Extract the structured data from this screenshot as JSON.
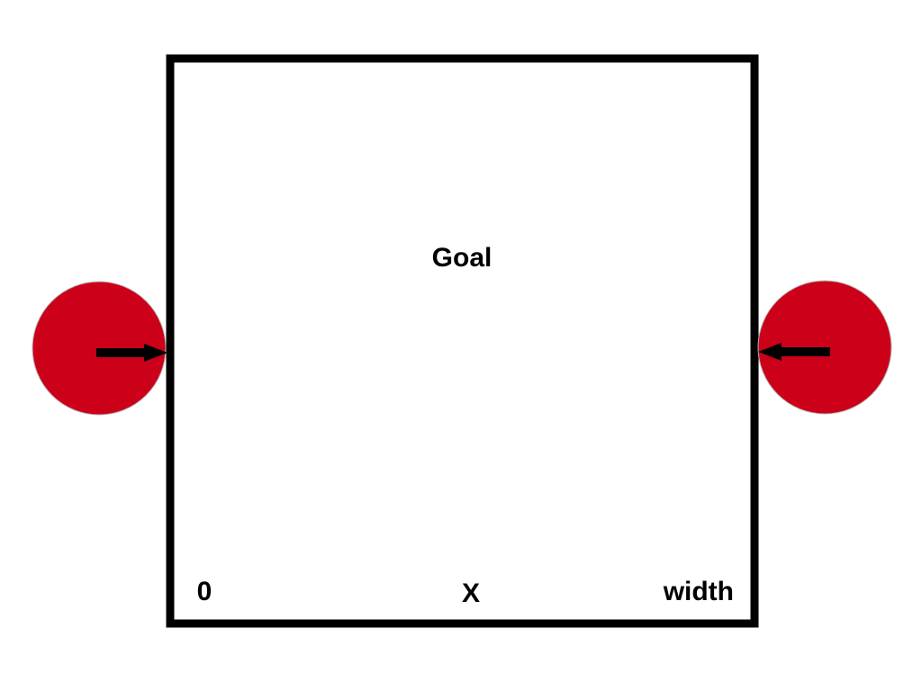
{
  "diagram": {
    "goal_label": "Goal",
    "axis_start_label": "0",
    "axis_variable_label": "X",
    "axis_end_label": "width"
  },
  "colors": {
    "frame": "#000000",
    "ball": "#cc0019",
    "ball_edge": "#b8b8b8",
    "arrow": "#000000",
    "background": "#ffffff"
  },
  "icons": {
    "left_ball": "red-circle-icon",
    "right_ball": "red-circle-icon",
    "left_arrow": "arrow-right-icon",
    "right_arrow": "arrow-left-icon"
  }
}
